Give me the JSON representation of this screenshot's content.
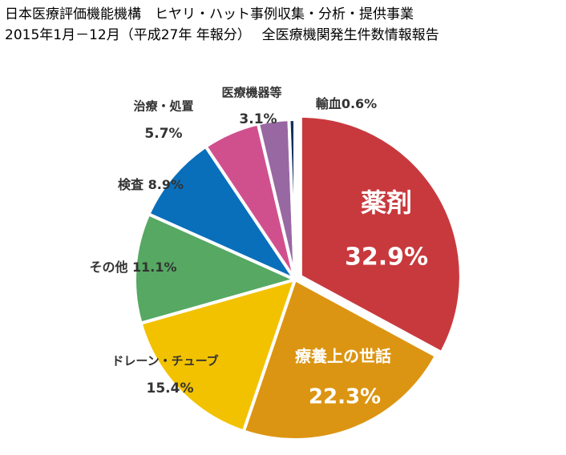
{
  "chart_data": {
    "type": "pie",
    "title_line1": "日本医療評価機能機構　ヒヤリ・ハット事例収集・分析・提供事業",
    "title_line2": "2015年1月－12月（平成27年 年報分）　 全医療機関発生件数情報報告",
    "start_angle_deg": 90,
    "direction": "clockwise",
    "explode_first": true,
    "slices": [
      {
        "label": "薬剤",
        "value": 32.9,
        "value_text": "32.9%",
        "color": "#c8393d"
      },
      {
        "label": "療養上の世話",
        "value": 22.3,
        "value_text": "22.3%",
        "color": "#dc9512"
      },
      {
        "label": "ドレーン・チューブ",
        "value": 15.4,
        "value_text": "15.4%",
        "color": "#f2c200"
      },
      {
        "label": "その他",
        "value": 11.1,
        "value_text": "11.1%",
        "color": "#56a862"
      },
      {
        "label": "検査",
        "value": 8.9,
        "value_text": "8.9%",
        "color": "#0a6fba"
      },
      {
        "label": "治療・処置",
        "value": 5.7,
        "value_text": "5.7%",
        "color": "#d0508e"
      },
      {
        "label": "医療機器等",
        "value": 3.1,
        "value_text": "3.1%",
        "color": "#9868a2"
      },
      {
        "label": "輸血",
        "value": 0.6,
        "value_text": "0.6%",
        "color": "#10305e"
      }
    ]
  }
}
